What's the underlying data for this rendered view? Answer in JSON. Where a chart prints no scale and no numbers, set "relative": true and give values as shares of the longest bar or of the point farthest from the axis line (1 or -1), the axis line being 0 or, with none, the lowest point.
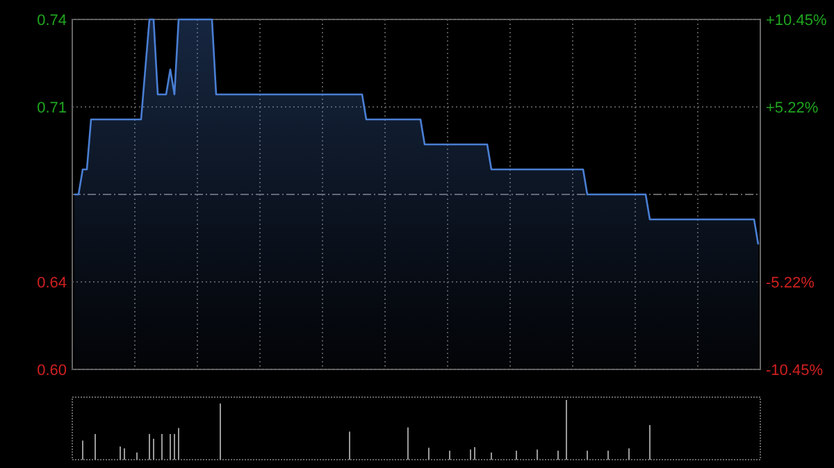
{
  "chart_data": [
    {
      "type": "area",
      "categories": [
        null,
        null,
        null,
        null,
        null,
        null,
        null,
        null,
        null,
        null,
        null,
        null,
        null,
        null,
        null,
        null,
        null,
        null,
        null,
        null,
        null,
        null,
        null,
        null,
        null,
        null,
        null,
        null,
        null,
        null,
        null,
        null,
        null,
        null,
        null,
        null,
        null,
        null,
        null,
        null,
        null,
        null,
        null,
        null,
        null,
        null,
        null,
        null,
        null,
        null,
        null,
        null,
        null,
        null,
        null,
        null,
        null,
        null,
        null,
        null,
        null,
        null,
        null,
        null,
        null,
        null,
        null,
        null,
        null,
        null,
        null,
        null,
        null,
        null,
        null,
        null,
        null,
        null,
        null,
        null,
        null,
        null,
        null,
        null,
        null,
        null,
        null,
        null,
        null,
        null,
        null,
        null,
        null,
        null,
        null,
        null,
        null,
        null,
        null,
        null,
        null,
        null,
        null,
        null,
        null,
        null,
        null,
        null,
        null,
        null,
        null,
        null,
        null,
        null,
        null,
        null,
        null,
        null,
        null,
        null,
        null,
        null,
        null,
        null,
        null,
        null,
        null,
        null,
        null,
        null,
        null,
        null,
        null,
        null,
        null,
        null,
        null,
        null,
        null,
        null,
        null,
        null,
        null,
        null,
        null,
        null,
        null,
        null,
        null,
        null,
        null,
        null,
        null,
        null,
        null,
        null,
        null,
        null,
        null,
        null,
        null,
        null,
        null,
        null,
        null
      ],
      "series": [
        {
          "color": "#4a7fd4",
          "values": [
            0.67,
            0.67,
            0.68,
            0.68,
            0.7,
            0.7,
            0.7,
            0.7,
            0.7,
            0.7,
            0.7,
            0.7,
            0.7,
            0.7,
            0.7,
            0.7,
            0.7,
            0.72,
            0.74,
            0.74,
            0.71,
            0.71,
            0.71,
            0.72,
            0.71,
            0.74,
            0.74,
            0.74,
            0.74,
            0.74,
            0.74,
            0.74,
            0.74,
            0.74,
            0.71,
            0.71,
            0.71,
            0.71,
            0.71,
            0.71,
            0.71,
            0.71,
            0.71,
            0.71,
            0.71,
            0.71,
            0.71,
            0.71,
            0.71,
            0.71,
            0.71,
            0.71,
            0.71,
            0.71,
            0.71,
            0.71,
            0.71,
            0.71,
            0.71,
            0.71,
            0.71,
            0.71,
            0.71,
            0.71,
            0.71,
            0.71,
            0.71,
            0.71,
            0.71,
            0.71,
            0.7,
            0.7,
            0.7,
            0.7,
            0.7,
            0.7,
            0.7,
            0.7,
            0.7,
            0.7,
            0.7,
            0.7,
            0.7,
            0.7,
            0.69,
            0.69,
            0.69,
            0.69,
            0.69,
            0.69,
            0.69,
            0.69,
            0.69,
            0.69,
            0.69,
            0.69,
            0.69,
            0.69,
            0.69,
            0.69,
            0.68,
            0.68,
            0.68,
            0.68,
            0.68,
            0.68,
            0.68,
            0.68,
            0.68,
            0.68,
            0.68,
            0.68,
            0.68,
            0.68,
            0.68,
            0.68,
            0.68,
            0.68,
            0.68,
            0.68,
            0.68,
            0.68,
            0.68,
            0.67,
            0.67,
            0.67,
            0.67,
            0.67,
            0.67,
            0.67,
            0.67,
            0.67,
            0.67,
            0.67,
            0.67,
            0.67,
            0.67,
            0.67,
            0.66,
            0.66,
            0.66,
            0.66,
            0.66,
            0.66,
            0.66,
            0.66,
            0.66,
            0.66,
            0.66,
            0.66,
            0.66,
            0.66,
            0.66,
            0.66,
            0.66,
            0.66,
            0.66,
            0.66,
            0.66,
            0.66,
            0.66,
            0.66,
            0.66,
            0.66,
            0.65
          ]
        }
      ],
      "ylim": [
        0.6,
        0.74
      ],
      "yticks": [
        0.74,
        {
          "value": 0.705,
          "label": "0.71"
        },
        {
          "value": 0.635,
          "label": "0.64"
        },
        {
          "value": 0.6,
          "label": "0.60"
        }
      ],
      "y2lim": [
        -10.45,
        10.45
      ],
      "y2ticks": [
        {
          "value": 10.45,
          "label": "+10.45%"
        },
        {
          "value": 5.22,
          "label": "+5.22%"
        },
        {
          "value": -5.22,
          "label": "-5.22%"
        },
        {
          "value": -10.45,
          "label": "-10.45%"
        }
      ],
      "ref_lines": [
        {
          "axis": "y",
          "value": 0.67,
          "color": "#666666",
          "line_style": "dashed"
        }
      ],
      "grid": true
    },
    {
      "type": "bar",
      "relative": true,
      "categories": [
        null,
        null,
        null,
        null,
        null,
        null,
        null,
        null,
        null,
        null,
        null,
        null,
        null,
        null,
        null,
        null,
        null,
        null,
        null,
        null,
        null,
        null,
        null,
        null,
        null,
        null,
        null,
        null,
        null,
        null,
        null,
        null,
        null,
        null,
        null,
        null,
        null,
        null,
        null,
        null,
        null,
        null,
        null,
        null,
        null,
        null,
        null,
        null,
        null,
        null,
        null,
        null,
        null,
        null,
        null,
        null,
        null,
        null,
        null,
        null,
        null,
        null,
        null,
        null,
        null,
        null,
        null,
        null,
        null,
        null,
        null,
        null,
        null,
        null,
        null,
        null,
        null,
        null,
        null,
        null,
        null,
        null,
        null,
        null,
        null,
        null,
        null,
        null,
        null,
        null,
        null,
        null,
        null,
        null,
        null,
        null,
        null,
        null,
        null,
        null,
        null,
        null,
        null,
        null,
        null,
        null,
        null,
        null,
        null,
        null,
        null,
        null,
        null,
        null,
        null,
        null,
        null,
        null,
        null,
        null,
        null,
        null,
        null,
        null,
        null,
        null,
        null,
        null,
        null,
        null,
        null,
        null,
        null,
        null,
        null,
        null,
        null,
        null,
        null,
        null,
        null,
        null,
        null,
        null,
        null,
        null,
        null,
        null,
        null,
        null,
        null,
        null,
        null,
        null,
        null,
        null,
        null,
        null,
        null,
        null,
        null,
        null,
        null,
        null,
        null
      ],
      "color": "#9a9a9a",
      "values": [
        null,
        null,
        0.32,
        null,
        null,
        0.43,
        null,
        null,
        null,
        null,
        null,
        0.22,
        0.19,
        null,
        null,
        0.12,
        null,
        null,
        0.43,
        0.35,
        null,
        0.43,
        null,
        0.43,
        0.43,
        0.53,
        null,
        null,
        null,
        null,
        null,
        null,
        null,
        null,
        null,
        0.94,
        null,
        null,
        null,
        null,
        null,
        null,
        null,
        null,
        null,
        null,
        null,
        null,
        null,
        null,
        null,
        null,
        null,
        null,
        null,
        null,
        null,
        null,
        null,
        null,
        null,
        null,
        null,
        null,
        null,
        null,
        0.47,
        null,
        null,
        null,
        null,
        null,
        null,
        null,
        null,
        null,
        null,
        null,
        null,
        null,
        0.54,
        null,
        null,
        null,
        null,
        0.2,
        null,
        null,
        null,
        null,
        0.15,
        null,
        null,
        null,
        null,
        0.17,
        0.21,
        null,
        null,
        null,
        0.12,
        null,
        null,
        null,
        null,
        null,
        0.15,
        null,
        null,
        null,
        null,
        0.17,
        null,
        null,
        null,
        null,
        0.15,
        null,
        1,
        null,
        null,
        null,
        null,
        0.15,
        null,
        null,
        null,
        null,
        0.15,
        null,
        null,
        null,
        null,
        0.19,
        null,
        null,
        null,
        null,
        0.58,
        null,
        null,
        null,
        null,
        null,
        null,
        null,
        null,
        null,
        null,
        null,
        null,
        null,
        null,
        null,
        null,
        null,
        null,
        null,
        null,
        null,
        null,
        null,
        null,
        null,
        null
      ]
    }
  ]
}
